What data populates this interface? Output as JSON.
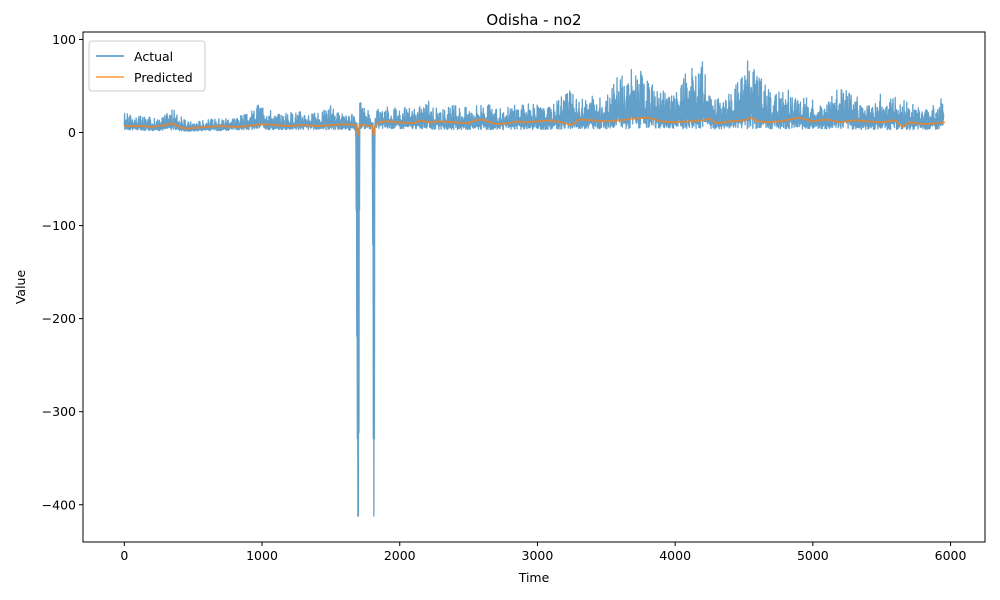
{
  "chart_data": {
    "type": "line",
    "title": "Odisha - no2",
    "xlabel": "Time",
    "ylabel": "Value",
    "xlim": [
      -300,
      6250
    ],
    "ylim": [
      -440,
      108
    ],
    "xticks": [
      0,
      1000,
      2000,
      3000,
      4000,
      5000,
      6000
    ],
    "yticks": [
      100,
      0,
      -100,
      -200,
      -300,
      -400
    ],
    "grid": false,
    "legend_position": "upper left",
    "series": [
      {
        "name": "Actual",
        "color": "#1f77b4",
        "opacity": 0.7,
        "x": [
          0,
          120,
          250,
          350,
          450,
          600,
          750,
          900,
          1000,
          1100,
          1200,
          1300,
          1400,
          1500,
          1600,
          1680,
          1695,
          1700,
          1705,
          1710,
          1730,
          1800,
          1810,
          1815,
          1820,
          1840,
          1900,
          2000,
          2100,
          2200,
          2300,
          2400,
          2500,
          2600,
          2700,
          2800,
          2900,
          3000,
          3100,
          3200,
          3300,
          3400,
          3500,
          3600,
          3650,
          3700,
          3800,
          3900,
          4000,
          4100,
          4150,
          4200,
          4250,
          4300,
          4400,
          4500,
          4550,
          4600,
          4650,
          4700,
          4800,
          4900,
          5000,
          5100,
          5200,
          5300,
          5400,
          5500,
          5600,
          5700,
          5800,
          5900,
          5950
        ],
        "y_low": [
          3,
          2,
          2,
          3,
          1,
          2,
          2,
          3,
          3,
          3,
          3,
          3,
          3,
          3,
          3,
          2,
          -412,
          -412,
          -300,
          4,
          4,
          4,
          -412,
          -412,
          2,
          4,
          4,
          4,
          4,
          4,
          3,
          3,
          3,
          3,
          3,
          3,
          3,
          3,
          3,
          3,
          4,
          4,
          4,
          4,
          4,
          4,
          4,
          4,
          4,
          4,
          4,
          4,
          4,
          3,
          4,
          4,
          4,
          4,
          4,
          4,
          4,
          3,
          4,
          3,
          4,
          3,
          3,
          3,
          3,
          3,
          3,
          3,
          3
        ],
        "y_high": [
          22,
          18,
          15,
          26,
          12,
          14,
          18,
          20,
          35,
          20,
          22,
          25,
          20,
          30,
          18,
          20,
          4,
          4,
          4,
          35,
          30,
          20,
          4,
          4,
          18,
          30,
          28,
          30,
          25,
          35,
          25,
          30,
          28,
          35,
          25,
          30,
          32,
          30,
          28,
          50,
          35,
          40,
          38,
          65,
          60,
          80,
          55,
          45,
          42,
          72,
          65,
          82,
          40,
          38,
          45,
          72,
          82,
          70,
          55,
          42,
          48,
          40,
          35,
          35,
          54,
          40,
          32,
          45,
          40,
          32,
          28,
          30,
          48
        ]
      },
      {
        "name": "Predicted",
        "color": "#ff7f0e",
        "opacity": 0.7,
        "x": [
          0,
          100,
          200,
          300,
          350,
          400,
          450,
          500,
          600,
          700,
          800,
          900,
          1000,
          1100,
          1200,
          1300,
          1400,
          1500,
          1600,
          1680,
          1700,
          1710,
          1720,
          1800,
          1810,
          1820,
          1850,
          1900,
          2000,
          2100,
          2150,
          2200,
          2300,
          2400,
          2500,
          2550,
          2600,
          2700,
          2800,
          2850,
          2900,
          3000,
          3100,
          3200,
          3250,
          3300,
          3400,
          3500,
          3600,
          3700,
          3800,
          3900,
          4000,
          4100,
          4200,
          4250,
          4300,
          4400,
          4500,
          4550,
          4600,
          4700,
          4800,
          4900,
          5000,
          5100,
          5200,
          5300,
          5400,
          5500,
          5600,
          5650,
          5700,
          5800,
          5900,
          5960
        ],
        "y": [
          7,
          7,
          6,
          8,
          10,
          6,
          4,
          5,
          6,
          7,
          6,
          7,
          9,
          8,
          7,
          8,
          7,
          8,
          9,
          8,
          -3,
          9,
          8,
          7,
          -3,
          7,
          11,
          12,
          11,
          10,
          13,
          11,
          12,
          11,
          10,
          13,
          14,
          9,
          10,
          12,
          11,
          12,
          13,
          10,
          8,
          14,
          13,
          12,
          13,
          15,
          16,
          12,
          11,
          12,
          13,
          15,
          10,
          12,
          13,
          16,
          12,
          11,
          13,
          16,
          12,
          14,
          11,
          13,
          12,
          11,
          13,
          6,
          11,
          9,
          10,
          11
        ]
      }
    ]
  }
}
